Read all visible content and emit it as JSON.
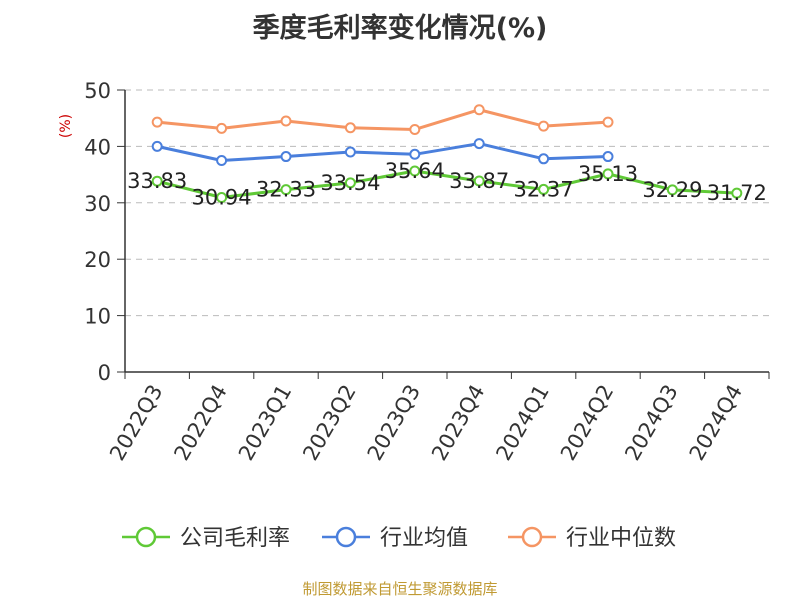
{
  "chart_data": {
    "type": "line",
    "title": "季度毛利率变化情况(%)",
    "ylabel": "(%)",
    "xlabel": "",
    "categories": [
      "2022Q3",
      "2022Q4",
      "2023Q1",
      "2023Q2",
      "2023Q3",
      "2023Q4",
      "2024Q1",
      "2024Q2",
      "2024Q3",
      "2024Q4"
    ],
    "ylim": [
      0,
      50
    ],
    "yticks": [
      0,
      10,
      20,
      30,
      40,
      50
    ],
    "grid": true,
    "legend_position": "bottom",
    "series": [
      {
        "name": "公司毛利率",
        "color": "#5fc936",
        "values": [
          33.83,
          30.94,
          32.33,
          33.54,
          35.64,
          33.87,
          32.37,
          35.13,
          32.29,
          31.72
        ],
        "labels": [
          "33.83",
          "30.94",
          "32.33",
          "33.54",
          "35.64",
          "33.87",
          "32.37",
          "35.13",
          "32.29",
          "31.72"
        ]
      },
      {
        "name": "行业均值",
        "color": "#4a7fdc",
        "values": [
          40.0,
          37.5,
          38.2,
          39.0,
          38.6,
          40.5,
          37.8,
          38.2,
          null,
          null
        ]
      },
      {
        "name": "行业中位数",
        "color": "#f59563",
        "values": [
          44.3,
          43.2,
          44.5,
          43.3,
          43.0,
          46.5,
          43.6,
          44.3,
          null,
          null
        ]
      }
    ]
  },
  "footer": "制图数据来自恒生聚源数据库"
}
